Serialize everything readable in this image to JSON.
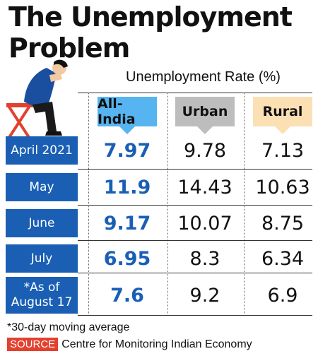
{
  "title_line1": "The Unemployment",
  "title_line2": "Problem",
  "colors": {
    "row_label_bg": "#1a5fb4",
    "all_india_header": "#56b4f0",
    "urban_header": "#bdbdbd",
    "rural_header": "#fbe0b4",
    "all_india_values": "#1a5fb4",
    "source_badge": "#e2412f"
  },
  "chart_data": {
    "type": "table",
    "title": "The Unemployment Problem",
    "subtitle": "Unemployment Rate (%)",
    "columns": [
      "All-India",
      "Urban",
      "Rural"
    ],
    "rows": [
      {
        "label": "April 2021",
        "values": [
          "7.97",
          "9.78",
          "7.13"
        ]
      },
      {
        "label": "May",
        "values": [
          "11.9",
          "14.43",
          "10.63"
        ]
      },
      {
        "label": "June",
        "values": [
          "9.17",
          "10.07",
          "8.75"
        ]
      },
      {
        "label": "July",
        "values": [
          "6.95",
          "8.3",
          "6.34"
        ]
      },
      {
        "label": "*As of August 17",
        "values": [
          "7.6",
          "9.2",
          "6.9"
        ]
      }
    ],
    "footnote": "*30-day moving average",
    "source_label": "SOURCE",
    "source_text": "Centre for Monitoring Indian Economy"
  }
}
